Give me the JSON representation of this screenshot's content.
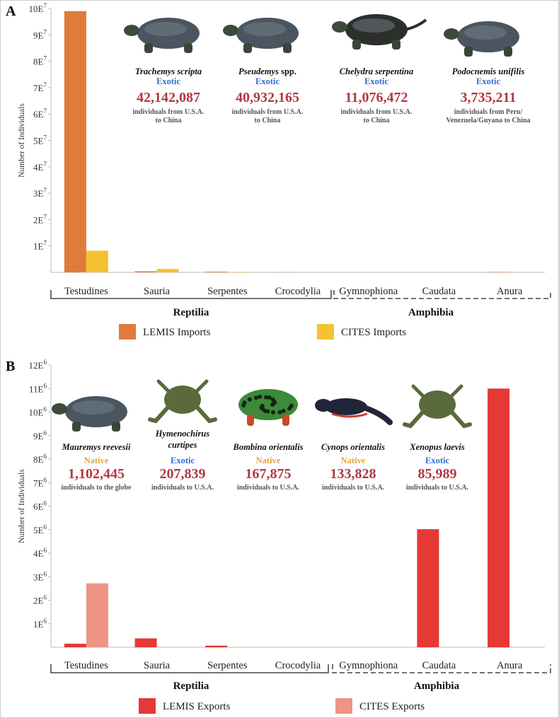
{
  "panels": [
    {
      "letter": "A",
      "ylabel": "Number of Individuals",
      "yticks": [
        "1E7",
        "2E7",
        "3E7",
        "4E7",
        "5E7",
        "6E7",
        "7E7",
        "8E7",
        "9E7",
        "10E7"
      ],
      "groups": [
        "Reptilia",
        "Amphibia"
      ],
      "legend": [
        {
          "label": "LEMIS Imports",
          "color": "#e07b3c"
        },
        {
          "label": "CITES Imports",
          "color": "#f4c230"
        }
      ],
      "species": [
        {
          "name": "Trachemys scripta",
          "status": "Exotic",
          "count": "42,142,087",
          "desc1": "individuals from U.S.A.",
          "desc2": "to China",
          "icon": "turtle-icon"
        },
        {
          "name": "Pseudemys spp.",
          "status": "Exotic",
          "count": "40,932,165",
          "desc1": "individuals from U.S.A.",
          "desc2": "to China",
          "icon": "turtle-icon"
        },
        {
          "name": "Chelydra serpentina",
          "status": "Exotic",
          "count": "11,076,472",
          "desc1": "individuals from U.S.A.",
          "desc2": "to China",
          "icon": "snapping-turtle-icon"
        },
        {
          "name": "Podocnemis unifilis",
          "status": "Exotic",
          "count": "3,735,211",
          "desc1": "individuals from Peru/",
          "desc2": "Venezuela/Guyana to China",
          "icon": "turtle-icon"
        }
      ]
    },
    {
      "letter": "B",
      "ylabel": "Number of Individuals",
      "yticks": [
        "1E6",
        "2E6",
        "3E6",
        "4E6",
        "5E6",
        "6E6",
        "7E6",
        "8E6",
        "9E6",
        "10E6",
        "11E6",
        "12E6"
      ],
      "groups": [
        "Reptilia",
        "Amphibia"
      ],
      "legend": [
        {
          "label": "LEMIS Exports",
          "color": "#e53935"
        },
        {
          "label": "CITES Exports",
          "color": "#ee9585"
        }
      ],
      "species": [
        {
          "name": "Mauremys reevesii",
          "status": "Native",
          "count": "1,102,445",
          "desc1": "individuals to the globe",
          "desc2": "",
          "icon": "turtle-icon"
        },
        {
          "name": "Hymenochirus curtipes",
          "status": "Exotic",
          "count": "207,839",
          "desc1": "individuals to U.S.A.",
          "desc2": "",
          "icon": "frog-icon"
        },
        {
          "name": "Bombina orientalis",
          "status": "Native",
          "count": "167,875",
          "desc1": "individuals to U.S.A.",
          "desc2": "",
          "icon": "toad-icon"
        },
        {
          "name": "Cynops orientalis",
          "status": "Native",
          "count": "133,828",
          "desc1": "individuals to U.S.A.",
          "desc2": "",
          "icon": "newt-icon"
        },
        {
          "name": "Xenopus laevis",
          "status": "Exotic",
          "count": "85,989",
          "desc1": "individuals to U.S.A.",
          "desc2": "",
          "icon": "frog-icon"
        }
      ]
    }
  ],
  "colors": {
    "exotic": "#2f6fd1",
    "native": "#e9a23b",
    "count": "#b3373f"
  },
  "chart_data": [
    {
      "type": "bar",
      "categories": [
        "Testudines",
        "Sauria",
        "Serpentes",
        "Crocodylia",
        "Gymnophiona",
        "Caudata",
        "Anura"
      ],
      "series": [
        {
          "name": "LEMIS Imports",
          "values": [
            99000000,
            400000,
            250000,
            50000,
            0,
            0,
            150000
          ]
        },
        {
          "name": "CITES Imports",
          "values": [
            8200000,
            1300000,
            150000,
            0,
            0,
            0,
            0
          ]
        }
      ],
      "ylabel": "Number of Individuals",
      "ylim": [
        0,
        100000000
      ]
    },
    {
      "type": "bar",
      "categories": [
        "Testudines",
        "Sauria",
        "Serpentes",
        "Crocodylia",
        "Gymnophiona",
        "Caudata",
        "Anura"
      ],
      "series": [
        {
          "name": "LEMIS Exports",
          "values": [
            150000,
            380000,
            70000,
            0,
            0,
            5020000,
            11000000
          ]
        },
        {
          "name": "CITES Exports",
          "values": [
            2720000,
            10000,
            5000,
            0,
            0,
            10000,
            10000
          ]
        }
      ],
      "ylabel": "Number of Individuals",
      "ylim": [
        0,
        12000000
      ]
    }
  ]
}
